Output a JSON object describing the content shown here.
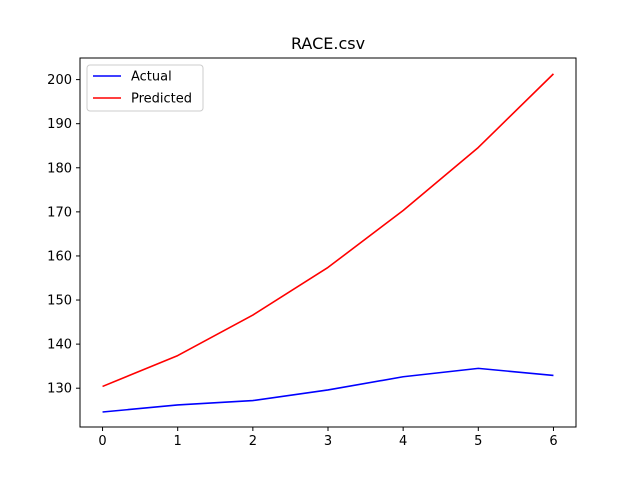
{
  "chart_data": {
    "type": "line",
    "title": "RACE.csv",
    "xlabel": "",
    "ylabel": "",
    "x": [
      0,
      1,
      2,
      3,
      4,
      5,
      6
    ],
    "xlim": [
      -0.3,
      6.3
    ],
    "ylim": [
      121.2,
      204.9
    ],
    "xticks": [
      0,
      1,
      2,
      3,
      4,
      5,
      6
    ],
    "yticks": [
      130,
      140,
      150,
      160,
      170,
      180,
      190,
      200
    ],
    "grid": false,
    "legend_position": "top-left",
    "series": [
      {
        "name": "Actual",
        "color": "#0000ff",
        "values": [
          124.6,
          126.2,
          127.2,
          129.6,
          132.6,
          134.5,
          132.9
        ]
      },
      {
        "name": "Predicted",
        "color": "#ff0000",
        "values": [
          130.4,
          137.4,
          146.6,
          157.4,
          170.3,
          184.6,
          201.3
        ]
      }
    ]
  }
}
